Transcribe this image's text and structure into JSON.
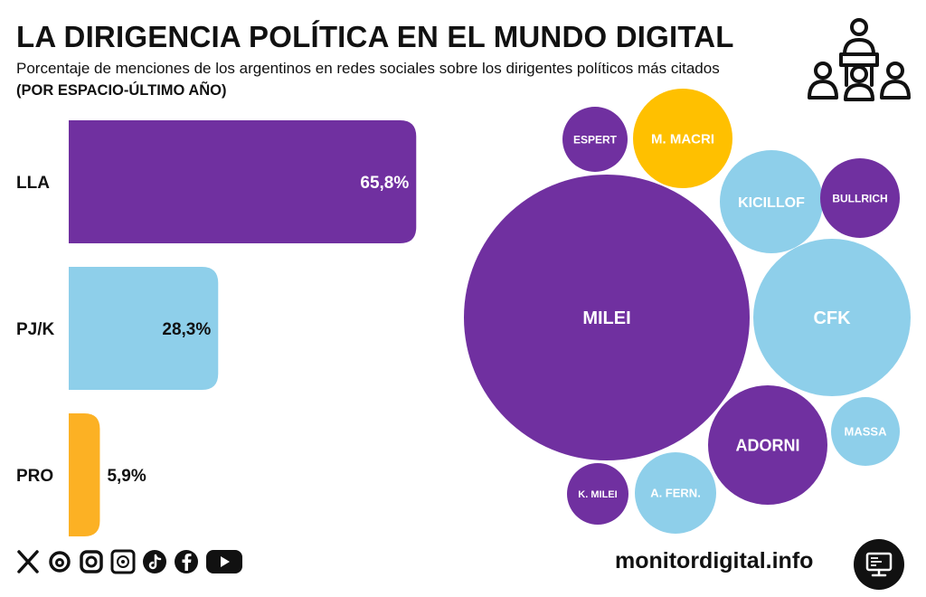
{
  "header": {
    "title": "LA DIRIGENCIA POLÍTICA EN EL MUNDO DIGITAL",
    "subtitle": "Porcentaje de menciones de los argentinos en redes sociales sobre los dirigentes políticos más citados",
    "note": "(POR ESPACIO-ÚLTIMO AÑO)",
    "icon": "conference-speaker-icon"
  },
  "chart_data": [
    {
      "type": "bar",
      "orientation": "horizontal",
      "categories": [
        "LLA",
        "PJ/K",
        "PRO"
      ],
      "values": [
        65.8,
        28.3,
        5.9
      ],
      "value_labels": [
        "65,8%",
        "28,3%",
        "5,9%"
      ],
      "colors": [
        "#7030A0",
        "#8ECFEA",
        "#FCB124"
      ],
      "xlim": [
        0,
        100
      ],
      "grid": false
    },
    {
      "type": "bubble",
      "bubbles": [
        {
          "label": "MILEI",
          "color": "#7030A0"
        },
        {
          "label": "CFK",
          "color": "#8ECFEA"
        },
        {
          "label": "ADORNI",
          "color": "#7030A0"
        },
        {
          "label": "KICILLOF",
          "color": "#8ECFEA"
        },
        {
          "label": "M. MACRI",
          "color": "#FFC000"
        },
        {
          "label": "A. FERN.",
          "color": "#8ECFEA"
        },
        {
          "label": "MASSA",
          "color": "#8ECFEA"
        },
        {
          "label": "BULLRICH",
          "color": "#7030A0"
        },
        {
          "label": "ESPERT",
          "color": "#7030A0"
        },
        {
          "label": "K. MILEI",
          "color": "#7030A0"
        }
      ]
    }
  ],
  "footer": {
    "social_icons": [
      "x-icon",
      "threads-icon",
      "instagram-icon",
      "podcast-icon",
      "tiktok-icon",
      "facebook-icon",
      "youtube-icon"
    ],
    "brand": "monitordigital.info",
    "brand_icon": "monitor-icon"
  }
}
